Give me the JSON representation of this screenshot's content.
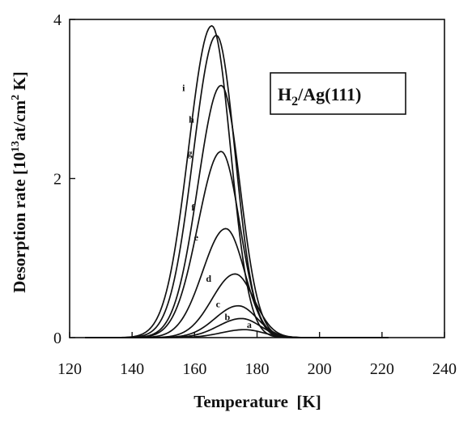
{
  "chart_data": {
    "type": "line",
    "xlabel": "Temperature  [K]",
    "ylabel_main": "Desorption rate [10",
    "ylabel_sup": "13",
    "ylabel_mid": "at/cm",
    "ylabel_sup2": "2",
    "ylabel_end": " K]",
    "xlim": [
      120,
      240
    ],
    "ylim": [
      0,
      4
    ],
    "xticks": [
      120,
      140,
      160,
      180,
      200,
      220,
      240
    ],
    "yticks": [
      0,
      2,
      4
    ],
    "legend": {
      "main": "H",
      "sub": "2",
      "rest": "/Ag(111)",
      "placement": "top-right"
    },
    "series": [
      {
        "name": "a",
        "peak_x": 176,
        "peak_y": 0.1,
        "label_x": 177.5,
        "label_y": 0.12
      },
      {
        "name": "b",
        "peak_x": 175,
        "peak_y": 0.24,
        "label_x": 170.5,
        "label_y": 0.22
      },
      {
        "name": "c",
        "peak_x": 174,
        "peak_y": 0.4,
        "label_x": 167.5,
        "label_y": 0.38
      },
      {
        "name": "d",
        "peak_x": 173,
        "peak_y": 0.8,
        "label_x": 164.5,
        "label_y": 0.7
      },
      {
        "name": "e",
        "peak_x": 170,
        "peak_y": 1.37,
        "label_x": 160.5,
        "label_y": 1.22
      },
      {
        "name": "f",
        "peak_x": 168.5,
        "peak_y": 2.34,
        "label_x": 159.5,
        "label_y": 1.6
      },
      {
        "name": "g",
        "peak_x": 168.5,
        "peak_y": 3.17,
        "label_x": 158.5,
        "label_y": 2.28
      },
      {
        "name": "h",
        "peak_x": 167,
        "peak_y": 3.8,
        "label_x": 159.0,
        "label_y": 2.7
      },
      {
        "name": "i",
        "peak_x": 165.5,
        "peak_y": 3.92,
        "label_x": 156.5,
        "label_y": 3.1
      }
    ]
  }
}
